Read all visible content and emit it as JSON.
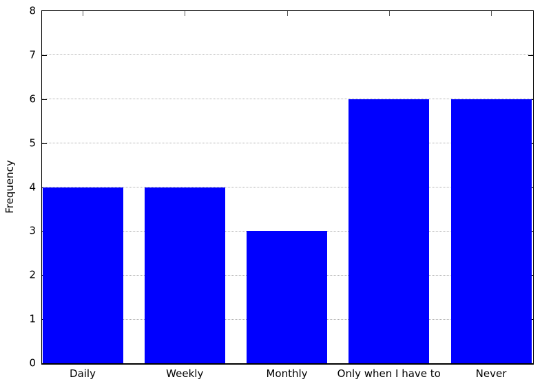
{
  "chart_data": {
    "type": "bar",
    "categories": [
      "Daily",
      "Weekly",
      "Monthly",
      "Only when I have to",
      "Never"
    ],
    "values": [
      4,
      4,
      3,
      6,
      6
    ],
    "title": "",
    "xlabel": "",
    "ylabel": "Frequency",
    "ylim": [
      0,
      8
    ],
    "yticks": [
      0,
      1,
      2,
      3,
      4,
      5,
      6,
      7,
      8
    ],
    "grid": true,
    "grid_style": "dotted",
    "legend_position": "none",
    "bar_color": "#0000ff",
    "grid_color": "#b0b0b0",
    "axis_color": "#000000",
    "text_color": "#000000",
    "background_color": "#ffffff"
  }
}
